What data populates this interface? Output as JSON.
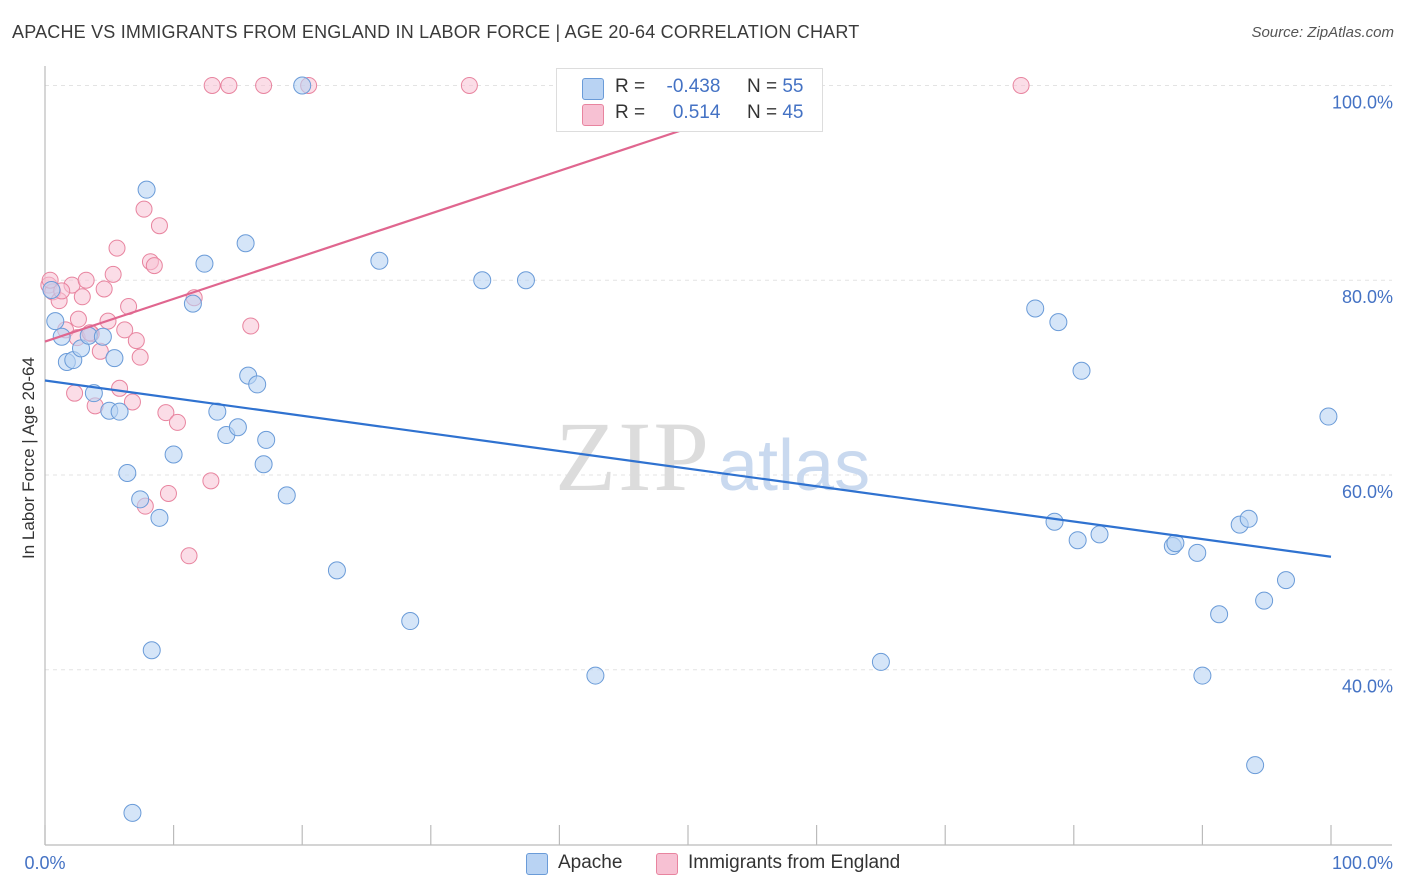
{
  "header": {
    "title": "APACHE VS IMMIGRANTS FROM ENGLAND IN LABOR FORCE | AGE 20-64 CORRELATION CHART",
    "source": "Source: ZipAtlas.com"
  },
  "watermark": {
    "zip": "ZIP",
    "atlas": "atlas"
  },
  "legend": {
    "r_label": "R =",
    "n_label": "N =",
    "apache": {
      "r": "-0.438",
      "n": "55"
    },
    "england": {
      "r": "0.514",
      "n": "45"
    }
  },
  "colors": {
    "apache_fill": "#b9d3f3",
    "apache_stroke": "#6a9bd8",
    "apache_line": "#2f72d0",
    "england_fill": "#f7c1d3",
    "england_stroke": "#e8849f",
    "england_line": "#e0668f",
    "tick_label": "#4472c4",
    "grid": "#e3e3e3"
  },
  "chart_data": {
    "type": "scatter",
    "title": "APACHE VS IMMIGRANTS FROM ENGLAND IN LABOR FORCE | AGE 20-64 CORRELATION CHART",
    "xlabel": "",
    "ylabel": "In Labor Force | Age 20-64",
    "xlim": [
      0,
      100
    ],
    "ylim": [
      22,
      102
    ],
    "x_tick_labels": [
      "0.0%",
      "100.0%"
    ],
    "y_ticks": [
      40,
      60,
      80,
      100
    ],
    "y_tick_labels": [
      "40.0%",
      "60.0%",
      "80.0%",
      "100.0%"
    ],
    "grid": true,
    "legend_position": "top-center",
    "series": [
      {
        "name": "Apache",
        "trend": {
          "x": [
            0,
            100
          ],
          "y": [
            69.7,
            51.6
          ]
        },
        "points": [
          {
            "x": 0.5,
            "y": 79.0
          },
          {
            "x": 0.8,
            "y": 75.8
          },
          {
            "x": 1.3,
            "y": 74.2
          },
          {
            "x": 1.7,
            "y": 71.6
          },
          {
            "x": 2.2,
            "y": 71.8
          },
          {
            "x": 2.8,
            "y": 73.0
          },
          {
            "x": 3.4,
            "y": 74.3
          },
          {
            "x": 3.8,
            "y": 68.4
          },
          {
            "x": 4.5,
            "y": 74.2
          },
          {
            "x": 5.0,
            "y": 66.6
          },
          {
            "x": 5.4,
            "y": 72.0
          },
          {
            "x": 5.8,
            "y": 66.5
          },
          {
            "x": 6.4,
            "y": 60.2
          },
          {
            "x": 6.8,
            "y": 25.3
          },
          {
            "x": 7.4,
            "y": 57.5
          },
          {
            "x": 7.9,
            "y": 89.3
          },
          {
            "x": 8.3,
            "y": 42.0
          },
          {
            "x": 8.9,
            "y": 55.6
          },
          {
            "x": 10.0,
            "y": 62.1
          },
          {
            "x": 11.5,
            "y": 77.6
          },
          {
            "x": 12.4,
            "y": 81.7
          },
          {
            "x": 13.4,
            "y": 66.5
          },
          {
            "x": 14.1,
            "y": 64.1
          },
          {
            "x": 15.0,
            "y": 64.9
          },
          {
            "x": 15.6,
            "y": 83.8
          },
          {
            "x": 15.8,
            "y": 70.2
          },
          {
            "x": 16.5,
            "y": 69.3
          },
          {
            "x": 17.0,
            "y": 61.1
          },
          {
            "x": 17.2,
            "y": 63.6
          },
          {
            "x": 18.8,
            "y": 57.9
          },
          {
            "x": 20.0,
            "y": 100.0
          },
          {
            "x": 22.7,
            "y": 50.2
          },
          {
            "x": 26.0,
            "y": 82.0
          },
          {
            "x": 28.4,
            "y": 45.0
          },
          {
            "x": 34.0,
            "y": 80.0
          },
          {
            "x": 37.4,
            "y": 80.0
          },
          {
            "x": 42.8,
            "y": 39.4
          },
          {
            "x": 65.0,
            "y": 40.8
          },
          {
            "x": 77.0,
            "y": 77.1
          },
          {
            "x": 78.8,
            "y": 75.7
          },
          {
            "x": 78.5,
            "y": 55.2
          },
          {
            "x": 80.3,
            "y": 53.3
          },
          {
            "x": 80.6,
            "y": 70.7
          },
          {
            "x": 82.0,
            "y": 53.9
          },
          {
            "x": 87.7,
            "y": 52.7
          },
          {
            "x": 87.9,
            "y": 53.0
          },
          {
            "x": 89.6,
            "y": 52.0
          },
          {
            "x": 90.0,
            "y": 39.4
          },
          {
            "x": 91.3,
            "y": 45.7
          },
          {
            "x": 92.9,
            "y": 54.9
          },
          {
            "x": 93.6,
            "y": 55.5
          },
          {
            "x": 94.1,
            "y": 30.2
          },
          {
            "x": 94.8,
            "y": 47.1
          },
          {
            "x": 96.5,
            "y": 49.2
          },
          {
            "x": 99.8,
            "y": 66.0
          }
        ]
      },
      {
        "name": "Immigrants from England",
        "trend": {
          "x": [
            0,
            60
          ],
          "y": [
            73.7,
            100.0
          ]
        },
        "points": [
          {
            "x": 0.3,
            "y": 79.5
          },
          {
            "x": 0.6,
            "y": 78.8
          },
          {
            "x": 1.1,
            "y": 77.9
          },
          {
            "x": 1.6,
            "y": 74.9
          },
          {
            "x": 2.1,
            "y": 79.5
          },
          {
            "x": 2.3,
            "y": 68.4
          },
          {
            "x": 2.6,
            "y": 76.0
          },
          {
            "x": 2.9,
            "y": 78.3
          },
          {
            "x": 3.2,
            "y": 80.0
          },
          {
            "x": 3.6,
            "y": 74.5
          },
          {
            "x": 3.9,
            "y": 67.1
          },
          {
            "x": 4.3,
            "y": 72.7
          },
          {
            "x": 4.6,
            "y": 79.1
          },
          {
            "x": 4.9,
            "y": 75.8
          },
          {
            "x": 5.3,
            "y": 80.6
          },
          {
            "x": 5.6,
            "y": 83.3
          },
          {
            "x": 5.8,
            "y": 68.9
          },
          {
            "x": 6.2,
            "y": 74.9
          },
          {
            "x": 6.5,
            "y": 77.3
          },
          {
            "x": 6.8,
            "y": 67.5
          },
          {
            "x": 7.1,
            "y": 73.8
          },
          {
            "x": 7.4,
            "y": 72.1
          },
          {
            "x": 7.7,
            "y": 87.3
          },
          {
            "x": 7.8,
            "y": 56.8
          },
          {
            "x": 8.2,
            "y": 81.9
          },
          {
            "x": 8.5,
            "y": 81.5
          },
          {
            "x": 8.9,
            "y": 85.6
          },
          {
            "x": 9.4,
            "y": 66.4
          },
          {
            "x": 9.6,
            "y": 58.1
          },
          {
            "x": 10.3,
            "y": 65.4
          },
          {
            "x": 11.2,
            "y": 51.7
          },
          {
            "x": 11.6,
            "y": 78.2
          },
          {
            "x": 12.9,
            "y": 59.4
          },
          {
            "x": 13.0,
            "y": 100.0
          },
          {
            "x": 14.3,
            "y": 100.0
          },
          {
            "x": 16.0,
            "y": 75.3
          },
          {
            "x": 17.0,
            "y": 100.0
          },
          {
            "x": 20.5,
            "y": 100.0
          },
          {
            "x": 33.0,
            "y": 100.0
          },
          {
            "x": 56.5,
            "y": 100.0
          },
          {
            "x": 75.9,
            "y": 100.0
          },
          {
            "x": 0.4,
            "y": 80.0
          },
          {
            "x": 1.3,
            "y": 78.9
          },
          {
            "x": 2.5,
            "y": 74.1
          },
          {
            "x": 3.5,
            "y": 74.6
          }
        ]
      }
    ]
  }
}
